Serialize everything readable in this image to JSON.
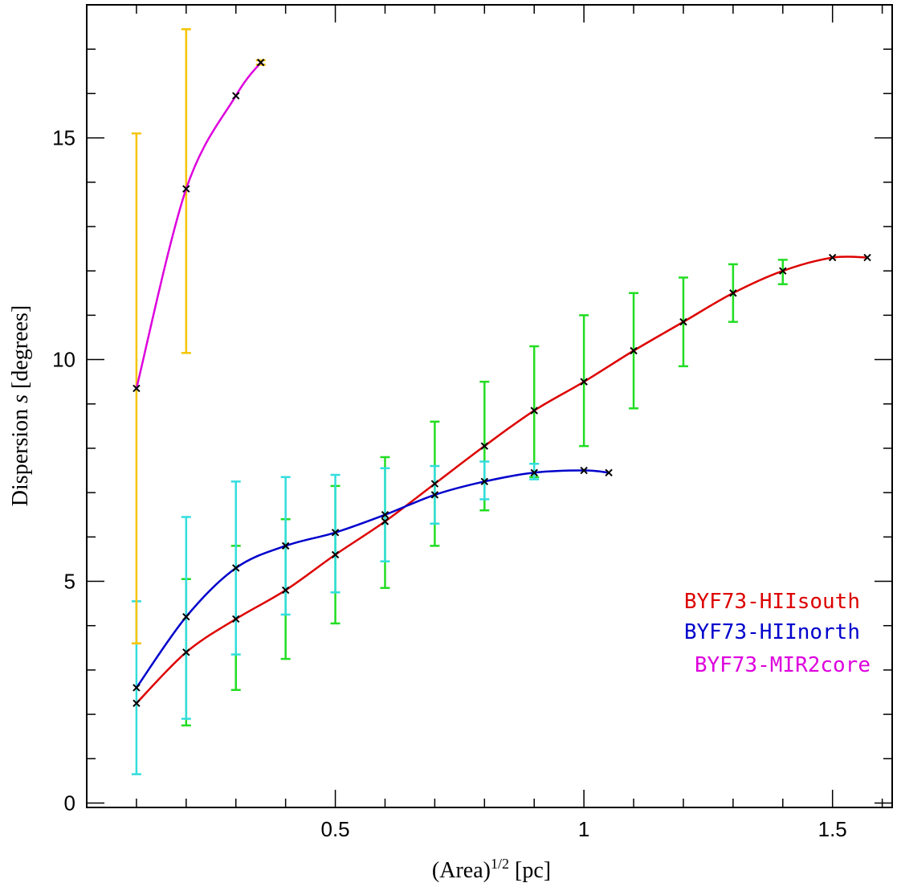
{
  "chart_data": {
    "type": "line",
    "title": "",
    "xlabel": {
      "base": "(Area)",
      "superscript": "1/2",
      "unit": "[pc]"
    },
    "ylabel": {
      "prefix": "Dispersion ",
      "symbol": "s",
      "suffix": " [degrees]"
    },
    "xlim": [
      0.0,
      1.62
    ],
    "ylim": [
      -0.1,
      18.0
    ],
    "x_major_ticks": [
      0.5,
      1.0,
      1.5
    ],
    "x_tick_labels": [
      "0.5",
      "1",
      "1.5"
    ],
    "y_major_ticks": [
      0,
      5,
      10,
      15
    ],
    "y_tick_labels": [
      "0",
      "5",
      "10",
      "15"
    ],
    "grid": false,
    "legend_position": "bottom-right",
    "series": [
      {
        "name": "BYF73-HIIsouth",
        "color": "#dd0000",
        "errorbar_color": "#22dd22",
        "x": [
          0.1,
          0.2,
          0.3,
          0.4,
          0.5,
          0.6,
          0.7,
          0.8,
          0.9,
          1.0,
          1.1,
          1.2,
          1.3,
          1.4,
          1.5,
          1.57
        ],
        "y": [
          2.25,
          3.4,
          4.15,
          4.8,
          5.6,
          6.35,
          7.2,
          8.05,
          8.85,
          9.5,
          10.2,
          10.85,
          11.5,
          12.0,
          12.3,
          12.3
        ],
        "err_low": [
          null,
          1.75,
          2.55,
          3.25,
          4.05,
          4.85,
          5.8,
          6.6,
          7.35,
          8.05,
          8.9,
          9.85,
          10.85,
          11.7,
          null,
          null
        ],
        "err_high": [
          null,
          5.05,
          5.8,
          6.4,
          7.15,
          7.8,
          8.6,
          9.5,
          10.3,
          11.0,
          11.5,
          11.85,
          12.15,
          12.25,
          null,
          null
        ]
      },
      {
        "name": "BYF73-HIInorth",
        "color": "#0000cc",
        "errorbar_color": "#33dddd",
        "x": [
          0.1,
          0.2,
          0.3,
          0.4,
          0.5,
          0.6,
          0.7,
          0.8,
          0.9,
          1.0,
          1.05
        ],
        "y": [
          2.6,
          4.2,
          5.3,
          5.8,
          6.1,
          6.5,
          6.95,
          7.25,
          7.45,
          7.5,
          7.45
        ],
        "err_low": [
          0.65,
          1.9,
          3.35,
          4.25,
          4.75,
          5.45,
          6.3,
          6.85,
          7.3,
          null,
          null
        ],
        "err_high": [
          4.55,
          6.45,
          7.25,
          7.35,
          7.4,
          7.55,
          7.6,
          7.7,
          7.65,
          null,
          null
        ]
      },
      {
        "name": "BYF73-MIR2core",
        "color": "#dd00dd",
        "errorbar_color": "#f5c400",
        "x": [
          0.1,
          0.2,
          0.3,
          0.35
        ],
        "y": [
          9.35,
          13.85,
          15.95,
          16.7
        ],
        "err_low": [
          3.6,
          10.15,
          null,
          16.65
        ],
        "err_high": [
          15.1,
          17.45,
          null,
          16.75
        ]
      }
    ]
  }
}
